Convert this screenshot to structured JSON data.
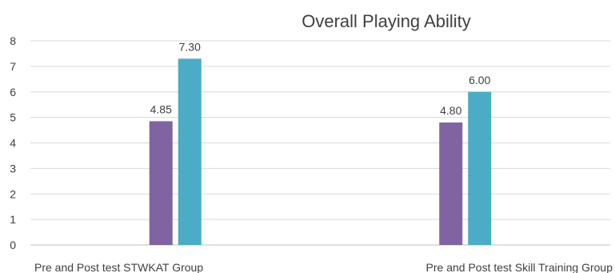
{
  "chart_data": {
    "type": "bar",
    "title": "Overall Playing Ability",
    "xlabel": "",
    "ylabel": "",
    "ylim": [
      0,
      8
    ],
    "yticks": [
      0,
      1,
      2,
      3,
      4,
      5,
      6,
      7,
      8
    ],
    "grid": true,
    "legend": "none",
    "categories": [
      "Pre and Post test STWKAT Group",
      "Pre and Post test Skill Training Group"
    ],
    "series": [
      {
        "values": [
          4.85,
          4.8
        ],
        "value_labels": [
          "4.85",
          "4.80"
        ],
        "color": "#8064A2"
      },
      {
        "values": [
          7.3,
          6.0
        ],
        "value_labels": [
          "7.30",
          "6.00"
        ],
        "color": "#4BACC6"
      }
    ]
  }
}
